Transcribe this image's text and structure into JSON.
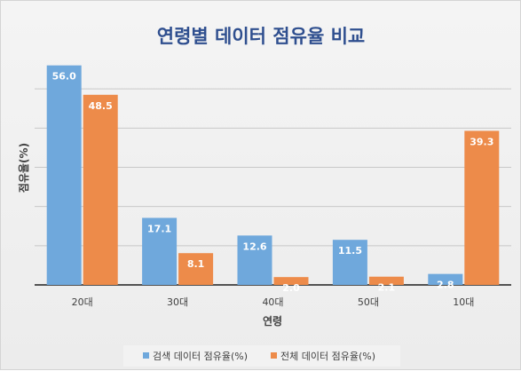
{
  "chart_data": {
    "type": "bar",
    "title": "연령별 데이터 점유율 비교",
    "xlabel": "연령",
    "ylabel": "점유율(%)",
    "categories": [
      "20대",
      "30대",
      "40대",
      "50대",
      "10대"
    ],
    "series": [
      {
        "name": "검색 데이터 점유율(%)",
        "values": [
          56.0,
          17.1,
          12.6,
          11.5,
          2.8
        ],
        "color": "#6fa8dc"
      },
      {
        "name": "전체 데이터 점유율(%)",
        "values": [
          48.5,
          8.1,
          2.0,
          2.1,
          39.3
        ],
        "color": "#ed8b4a"
      }
    ],
    "ylim": [
      0,
      60
    ],
    "grid": true,
    "legend_position": "bottom",
    "data_labels": true
  }
}
